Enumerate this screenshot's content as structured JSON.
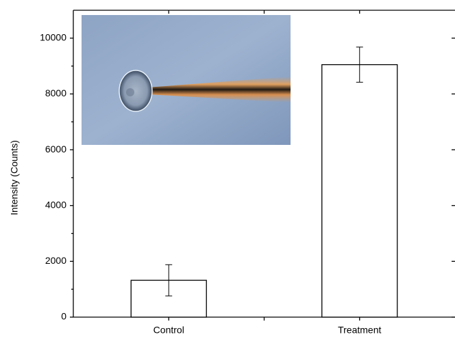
{
  "chart_data": {
    "type": "bar",
    "y_label": "Intensity (Counts)",
    "categories": [
      "Control",
      "Treatment"
    ],
    "values": [
      1320,
      9050
    ],
    "errors": [
      560,
      630
    ],
    "color": "#ffffff",
    "edge_color": "#000000",
    "ylim": [
      0,
      11000
    ],
    "yticks": [
      0,
      2000,
      4000,
      6000,
      8000,
      10000
    ]
  }
}
